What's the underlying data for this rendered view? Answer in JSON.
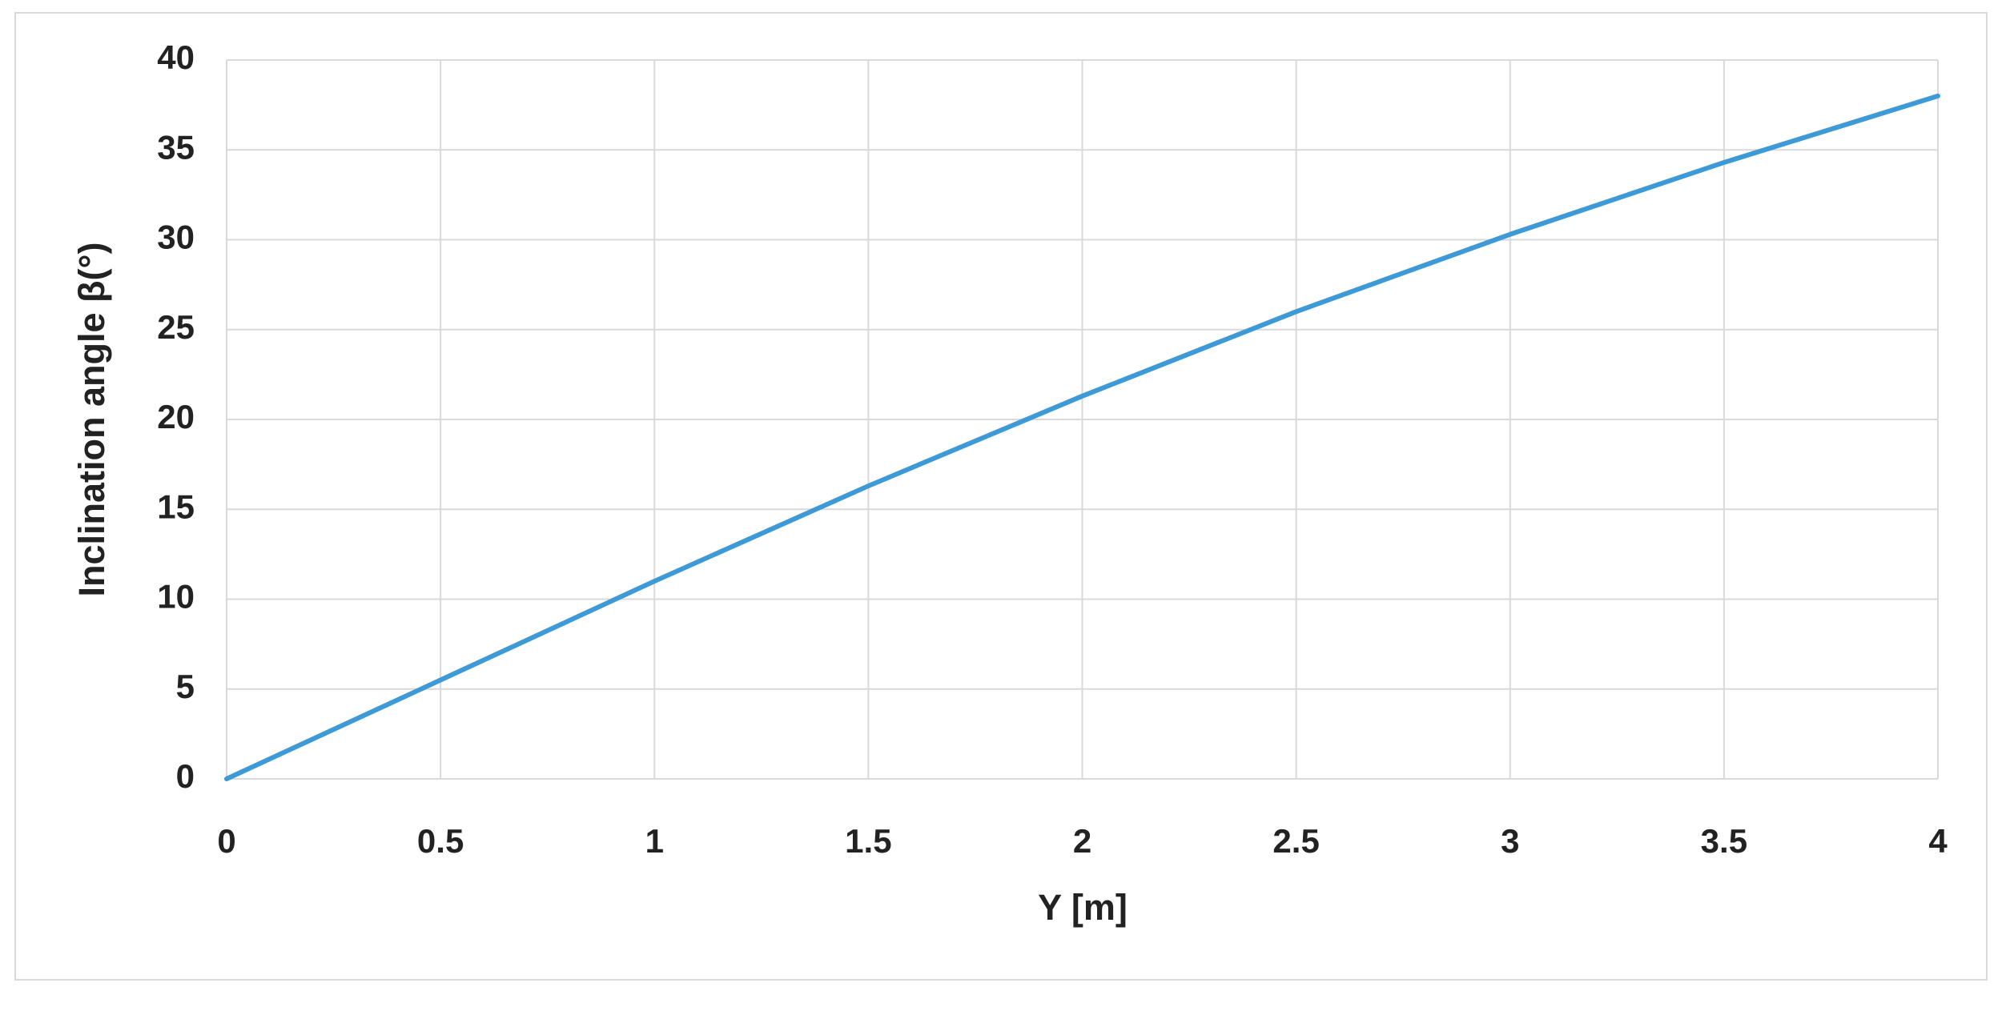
{
  "chart_data": {
    "type": "line",
    "x_label": "Y [m]",
    "y_label": "Inclination angle  β(°)",
    "x": [
      0,
      0.5,
      1,
      1.5,
      2,
      2.5,
      3,
      3.5,
      4
    ],
    "values": [
      0,
      5.5,
      11,
      16.3,
      21.3,
      26,
      30.3,
      34.3,
      38
    ],
    "color": "#3d9ad6",
    "xlim": [
      0,
      4
    ],
    "xticks": [
      0,
      0.5,
      1,
      1.5,
      2,
      2.5,
      3,
      3.5,
      4
    ],
    "ylim": [
      0,
      40
    ],
    "yticks": [
      0,
      5,
      10,
      15,
      20,
      25,
      30,
      35,
      40
    ],
    "grid": true
  }
}
